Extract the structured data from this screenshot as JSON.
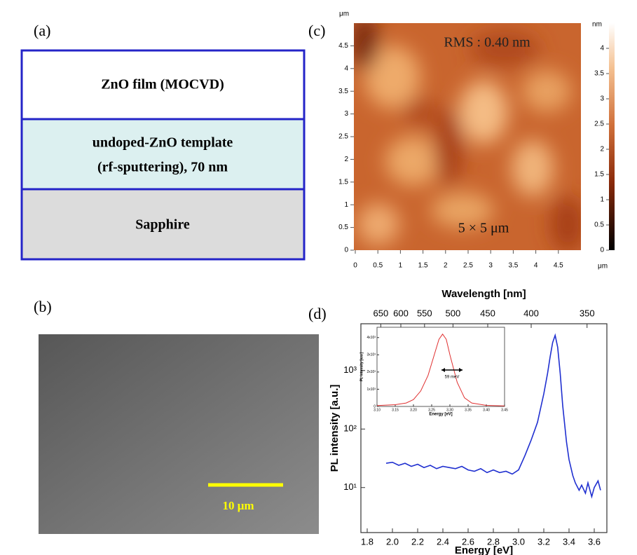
{
  "panel_a": {
    "label": "(a)",
    "layers": [
      [
        "ZnO film (MOCVD)"
      ],
      [
        "undoped-ZnO template",
        "(rf-sputtering), 70 nm"
      ],
      [
        "Sapphire"
      ]
    ]
  },
  "panel_b": {
    "label": "(b)",
    "scale_bar": "10 μm"
  },
  "panel_c": {
    "label": "(c)",
    "annotation": "RMS : 0.40 nm",
    "scan_size": "5 × 5 μm",
    "unit": "μm",
    "xlim": [
      0,
      5
    ],
    "ylim": [
      0,
      5
    ],
    "xticks": [
      0,
      0.5,
      1,
      1.5,
      2,
      2.5,
      3,
      3.5,
      4,
      4.5
    ],
    "yticks": [
      0,
      0.5,
      1,
      1.5,
      2,
      2.5,
      3,
      3.5,
      4,
      4.5
    ],
    "colorbar_unit": "nm",
    "colorbar_lim": [
      0,
      4.5
    ],
    "colorbar_ticks": [
      0,
      0.5,
      1,
      1.5,
      2,
      2.5,
      3,
      3.5,
      4
    ]
  },
  "panel_d_label": "(d)",
  "chart_data": [
    {
      "type": "line",
      "log_y": true,
      "color": "#1f2fd0",
      "xlabel": "Energy [eV]",
      "ylabel": "PL intensity [a.u.]",
      "x2label": "Wavelength [nm]",
      "x": [
        1.95,
        2.0,
        2.05,
        2.1,
        2.15,
        2.2,
        2.25,
        2.3,
        2.35,
        2.4,
        2.45,
        2.5,
        2.55,
        2.6,
        2.65,
        2.7,
        2.75,
        2.8,
        2.85,
        2.9,
        2.95,
        3.0,
        3.05,
        3.1,
        3.15,
        3.2,
        3.23,
        3.25,
        3.27,
        3.29,
        3.31,
        3.33,
        3.35,
        3.38,
        3.4,
        3.43,
        3.45,
        3.48,
        3.5,
        3.53,
        3.55,
        3.58,
        3.6,
        3.63,
        3.65
      ],
      "values": [
        26,
        27,
        24,
        26,
        23,
        25,
        22,
        24,
        21,
        23,
        22,
        21,
        23,
        20,
        19,
        21,
        18,
        20,
        18,
        19,
        17,
        20,
        35,
        65,
        130,
        400,
        900,
        1700,
        3000,
        4000,
        2500,
        900,
        250,
        60,
        30,
        16,
        12,
        9,
        11,
        8,
        12,
        7,
        10,
        13,
        9
      ],
      "xlim": [
        1.75,
        3.7
      ],
      "xticks": [
        1.8,
        {
          "value": 2,
          "label": "2.0"
        },
        2.2,
        2.4,
        2.6,
        2.8,
        {
          "value": 3,
          "label": "3.0"
        },
        3.2,
        3.4,
        3.6
      ],
      "ylim": [
        1.7,
        6300
      ],
      "yticks": [
        {
          "value": 10,
          "label": "10¹"
        },
        {
          "value": 100,
          "label": "10²"
        },
        {
          "value": 1000,
          "label": "10³"
        }
      ],
      "x2ticks": [
        650,
        600,
        550,
        500,
        450,
        400,
        350
      ]
    },
    {
      "type": "line",
      "color": "#e03030",
      "xlabel": "Energy [eV]",
      "ylabel": "PL intensity [a.u.]",
      "annotation": "59 meV",
      "x": [
        3.1,
        3.15,
        3.18,
        3.2,
        3.22,
        3.24,
        3.26,
        3.27,
        3.28,
        3.29,
        3.3,
        3.32,
        3.34,
        3.36,
        3.4,
        3.45
      ],
      "values": [
        50,
        100,
        200,
        400,
        900,
        1800,
        3200,
        3900,
        4200,
        3900,
        3000,
        1400,
        500,
        200,
        60,
        30
      ],
      "xlim": [
        3.1,
        3.45
      ],
      "xticks": [
        {
          "value": 3.1,
          "label": "3.10"
        },
        3.15,
        {
          "value": 3.2,
          "label": "3.20"
        },
        3.25,
        {
          "value": 3.3,
          "label": "3.30"
        },
        3.35,
        {
          "value": 3.4,
          "label": "3.40"
        },
        3.45
      ],
      "ylim": [
        0,
        4600
      ],
      "yticks": [
        0,
        {
          "value": 1000,
          "label": "1x10³"
        },
        {
          "value": 2000,
          "label": "2x10³"
        },
        {
          "value": 3000,
          "label": "3x10³"
        },
        {
          "value": 4000,
          "label": "4x10³"
        }
      ]
    }
  ]
}
